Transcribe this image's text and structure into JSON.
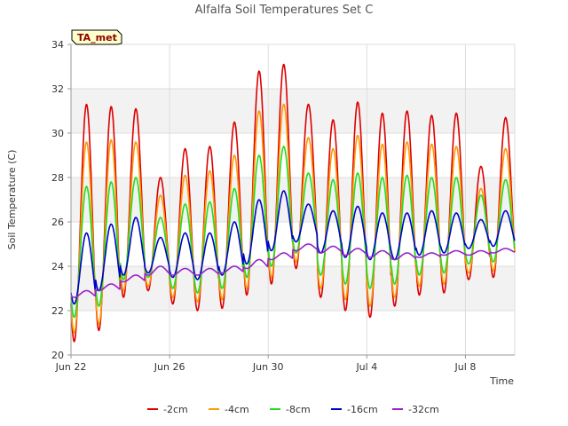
{
  "chart_data": {
    "type": "line",
    "title": "Alfalfa Soil Temperatures Set C",
    "xlabel": "Time",
    "ylabel": "Soil Temperature (C)",
    "xlim": [
      "2023-06-22",
      "2023-07-10"
    ],
    "ylim": [
      20,
      34
    ],
    "yticks": [
      20,
      22,
      24,
      26,
      28,
      30,
      32,
      34
    ],
    "xticks": [
      {
        "date": "2023-06-22",
        "label": "Jun 22"
      },
      {
        "date": "2023-06-26",
        "label": "Jun 26"
      },
      {
        "date": "2023-06-30",
        "label": "Jun 30"
      },
      {
        "date": "2023-07-04",
        "label": "Jul 4"
      },
      {
        "date": "2023-07-08",
        "label": "Jul 8"
      }
    ],
    "grid": true,
    "banded_background": true,
    "legend_position": "bottom",
    "badge": "TA_met",
    "series_start": "2023-06-22",
    "series": [
      {
        "name": "-2cm",
        "color": "#dd0000",
        "max": [
          31.3,
          31.2,
          31.1,
          28.0,
          29.3,
          29.4,
          30.5,
          32.8,
          33.1,
          31.3,
          30.6,
          31.4,
          30.9,
          31.0,
          30.8,
          30.9,
          28.5,
          30.7
        ],
        "min": [
          20.6,
          21.1,
          22.6,
          22.9,
          22.3,
          22.0,
          22.1,
          22.7,
          23.2,
          23.9,
          22.6,
          22.0,
          21.7,
          22.2,
          22.7,
          22.8,
          23.4,
          23.5
        ]
      },
      {
        "name": "-4cm",
        "color": "#ff9900",
        "max": [
          29.6,
          29.7,
          29.6,
          27.2,
          28.1,
          28.3,
          29.0,
          31.0,
          31.3,
          29.8,
          29.3,
          29.9,
          29.5,
          29.6,
          29.5,
          29.4,
          27.5,
          29.3
        ],
        "min": [
          21.0,
          21.4,
          22.9,
          23.1,
          22.6,
          22.4,
          22.5,
          23.0,
          23.5,
          24.2,
          23.0,
          22.5,
          22.2,
          22.6,
          23.1,
          23.2,
          23.7,
          23.8
        ]
      },
      {
        "name": "-8cm",
        "color": "#22dd22",
        "max": [
          27.6,
          27.8,
          28.0,
          26.2,
          26.8,
          26.9,
          27.5,
          29.0,
          29.4,
          28.2,
          27.9,
          28.2,
          28.0,
          28.1,
          28.0,
          28.0,
          27.2,
          27.9
        ],
        "min": [
          21.7,
          22.2,
          23.4,
          23.5,
          23.0,
          22.8,
          23.0,
          23.5,
          24.0,
          24.6,
          23.6,
          23.2,
          23.0,
          23.2,
          23.6,
          23.7,
          24.1,
          24.2
        ]
      },
      {
        "name": "-16cm",
        "color": "#0000cc",
        "max": [
          25.5,
          25.9,
          26.2,
          25.3,
          25.5,
          25.5,
          26.0,
          27.0,
          27.4,
          26.8,
          26.5,
          26.7,
          26.4,
          26.4,
          26.5,
          26.4,
          26.1,
          26.5
        ],
        "min": [
          22.3,
          22.9,
          23.6,
          23.7,
          23.5,
          23.4,
          23.6,
          24.1,
          24.7,
          25.1,
          24.6,
          24.4,
          24.3,
          24.3,
          24.5,
          24.6,
          24.8,
          24.9
        ]
      },
      {
        "name": "-32cm",
        "color": "#9922cc",
        "max": [
          22.9,
          23.2,
          23.6,
          24.0,
          23.9,
          23.9,
          24.0,
          24.3,
          24.6,
          25.0,
          24.9,
          24.8,
          24.7,
          24.6,
          24.6,
          24.7,
          24.7,
          24.8
        ],
        "min": [
          22.6,
          22.9,
          23.3,
          23.6,
          23.6,
          23.6,
          23.7,
          23.9,
          24.3,
          24.7,
          24.6,
          24.5,
          24.4,
          24.3,
          24.4,
          24.5,
          24.5,
          24.6
        ]
      }
    ]
  }
}
